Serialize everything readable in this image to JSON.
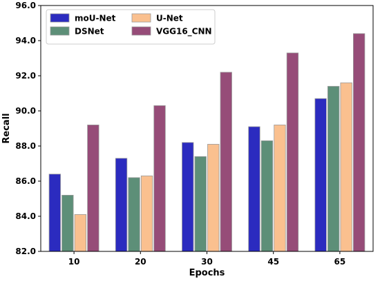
{
  "chart_data": {
    "type": "bar",
    "xlabel": "Epochs",
    "ylabel": "Recall",
    "categories": [
      "10",
      "20",
      "30",
      "45",
      "65"
    ],
    "ylim": [
      82.0,
      96.0
    ],
    "yticks": [
      "82.0",
      "84.0",
      "86.0",
      "88.0",
      "90.0",
      "92.0",
      "94.0",
      "96.0"
    ],
    "ytick_values": [
      82,
      84,
      86,
      88,
      90,
      92,
      94,
      96
    ],
    "grid": false,
    "legend_placement": "top-left",
    "series": [
      {
        "name": "moU-Net",
        "color": "#2b2bbf",
        "values": [
          86.4,
          87.3,
          88.2,
          89.1,
          90.7
        ]
      },
      {
        "name": "DSNet",
        "color": "#5d8f78",
        "values": [
          85.2,
          86.2,
          87.4,
          88.3,
          91.4
        ]
      },
      {
        "name": "U-Net",
        "color": "#fac08f",
        "values": [
          84.1,
          86.3,
          88.1,
          89.2,
          91.6
        ]
      },
      {
        "name": "VGG16_CNN",
        "color": "#964c78",
        "values": [
          89.2,
          90.3,
          92.2,
          93.3,
          94.4
        ]
      }
    ]
  }
}
